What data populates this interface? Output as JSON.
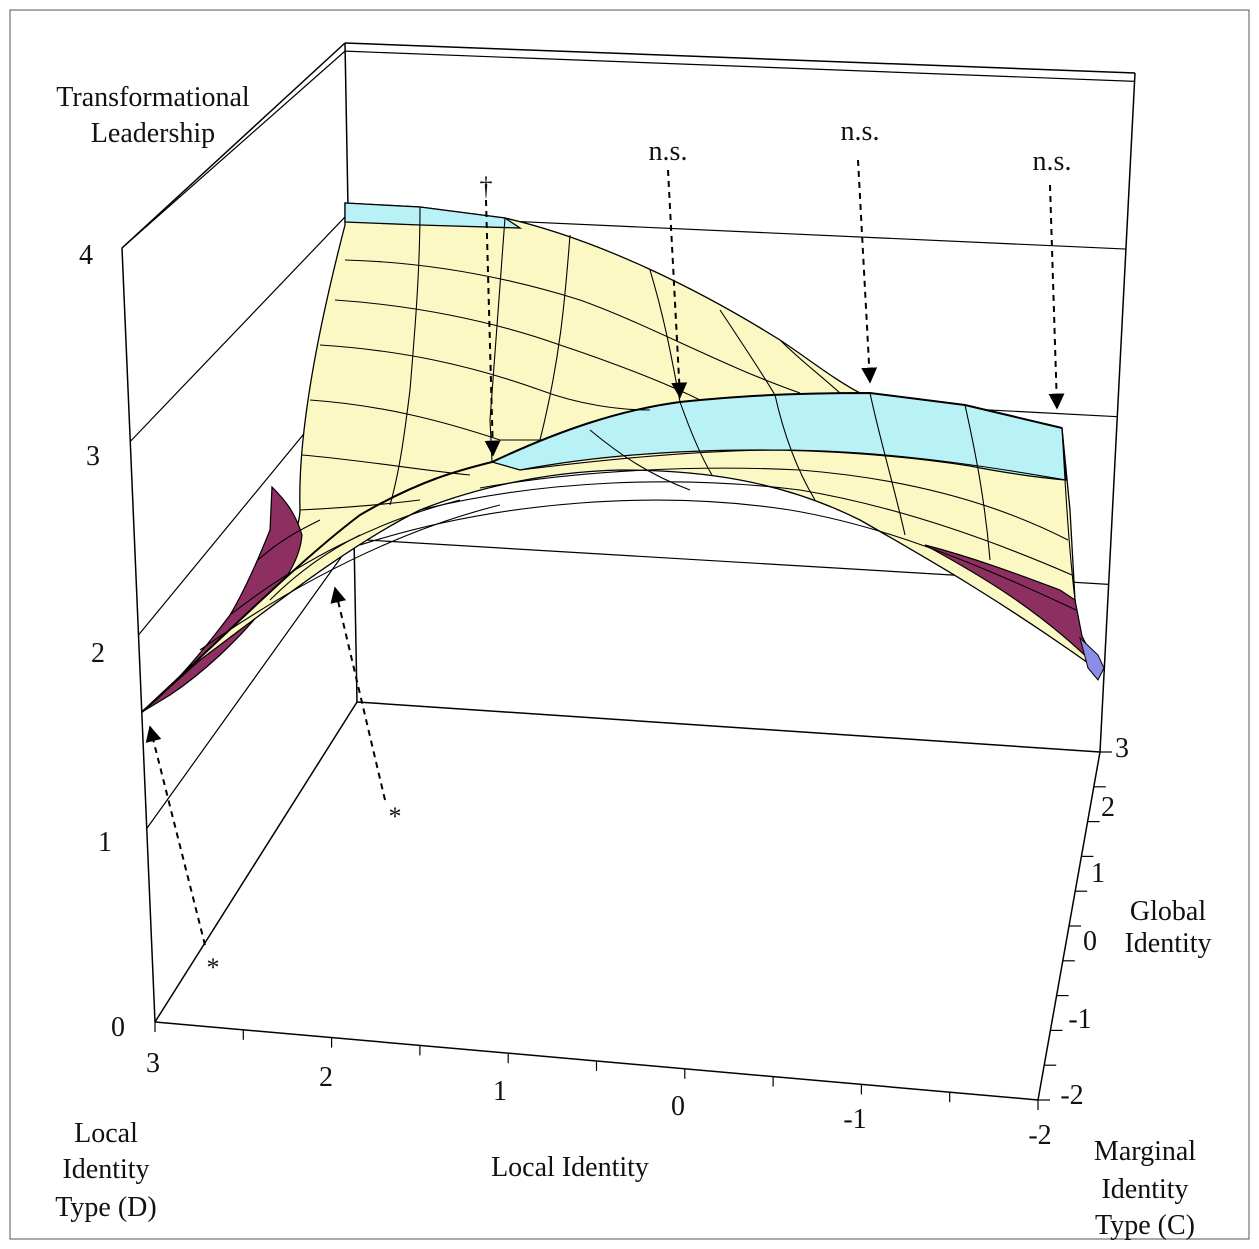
{
  "chart_data": {
    "type": "surface",
    "title": "",
    "zlabel_lines": [
      "Transformational",
      "Leadership"
    ],
    "xlabel": "Local Identity",
    "ylabel_lines": [
      "Global",
      "Identity"
    ],
    "corner_left_lines": [
      "Local",
      "Identity",
      "Type (D)"
    ],
    "corner_right_lines": [
      "Marginal",
      "Identity",
      "Type (C)"
    ],
    "z_ticks": [
      "0",
      "1",
      "2",
      "3",
      "4"
    ],
    "x_ticks": [
      "3",
      "2",
      "1",
      "0",
      "-1",
      "-2"
    ],
    "y_ticks": [
      "-2",
      "-1",
      "0",
      "1",
      "2",
      "3"
    ],
    "xlim": [
      3,
      -2
    ],
    "ylim": [
      -2,
      3
    ],
    "zlim": [
      0,
      4
    ],
    "colors": {
      "band_1_5_2": "#8b8de6",
      "band_2_2_5": "#8e2f61",
      "band_2_5_3": "#fbf8c4",
      "band_3_3_5": "#fbf8c4",
      "band_3_5_4": "#b9f2f6",
      "frame": "#000000"
    },
    "front_ridge_line": {
      "x": [
        3,
        2.5,
        2,
        1.5,
        1,
        0.5,
        0,
        -0.5,
        -1,
        -1.5,
        -2
      ],
      "z": [
        1.8,
        2.35,
        2.8,
        3.2,
        3.45,
        3.62,
        3.7,
        3.72,
        3.68,
        3.55,
        3.35
      ]
    },
    "annotations": [
      {
        "label": "n.s.",
        "x": 0,
        "target": "ridge"
      },
      {
        "label": "n.s.",
        "x": -1,
        "target": "ridge"
      },
      {
        "label": "n.s.",
        "x": -2,
        "target": "ridge"
      },
      {
        "label": "†",
        "x": 1,
        "target": "ridge"
      },
      {
        "label": "*",
        "x": 3,
        "target": "front-left corner"
      },
      {
        "label": "*",
        "x": 2,
        "target": "front-left edge"
      }
    ]
  }
}
